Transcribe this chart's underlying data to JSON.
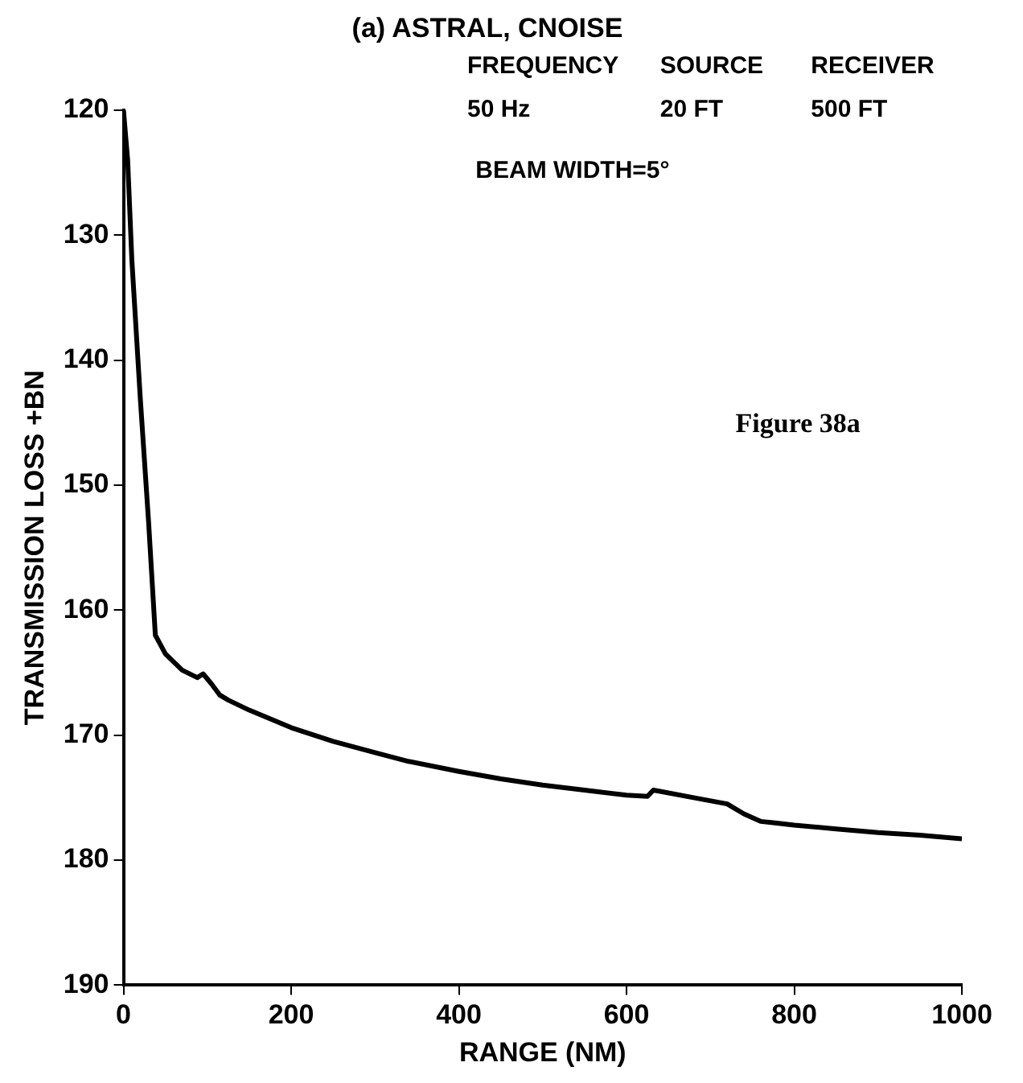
{
  "chart_data": {
    "type": "line",
    "title": "(a) ASTRAL, CNOISE",
    "xlabel": "RANGE (NM)",
    "ylabel": "TRANSMISSION LOSS +BN",
    "annotations": [
      "FREQUENCY",
      "SOURCE",
      "RECEIVER",
      "50 Hz",
      "20 FT",
      "500 FT",
      "BEAM WIDTH=5°",
      "Figure 38a"
    ],
    "x": [
      0,
      5,
      10,
      20,
      30,
      38,
      50,
      70,
      88,
      95,
      105,
      115,
      125,
      150,
      200,
      250,
      300,
      340,
      400,
      450,
      500,
      550,
      600,
      625,
      632,
      640,
      680,
      720,
      740,
      760,
      775,
      800,
      850,
      900,
      950,
      1000
    ],
    "series": [
      {
        "color": "#000000",
        "values": [
          120,
          124,
          132,
          143,
          153,
          162,
          163.5,
          164.8,
          165.4,
          165.1,
          165.9,
          166.8,
          167.2,
          168.0,
          169.4,
          170.5,
          171.4,
          172.1,
          172.9,
          173.5,
          174.0,
          174.4,
          174.8,
          174.9,
          174.4,
          174.5,
          175.0,
          175.5,
          176.3,
          176.9,
          177.0,
          177.2,
          177.5,
          177.8,
          178.0,
          178.3
        ]
      }
    ],
    "xlim": [
      0,
      1000
    ],
    "xticks": [
      0,
      200,
      400,
      600,
      800,
      1000
    ],
    "ylim": [
      190,
      120
    ],
    "yticks": [
      120,
      130,
      140,
      150,
      160,
      170,
      180,
      190
    ],
    "grid": false,
    "legend": false,
    "marker": "none",
    "line_style": "solid"
  }
}
